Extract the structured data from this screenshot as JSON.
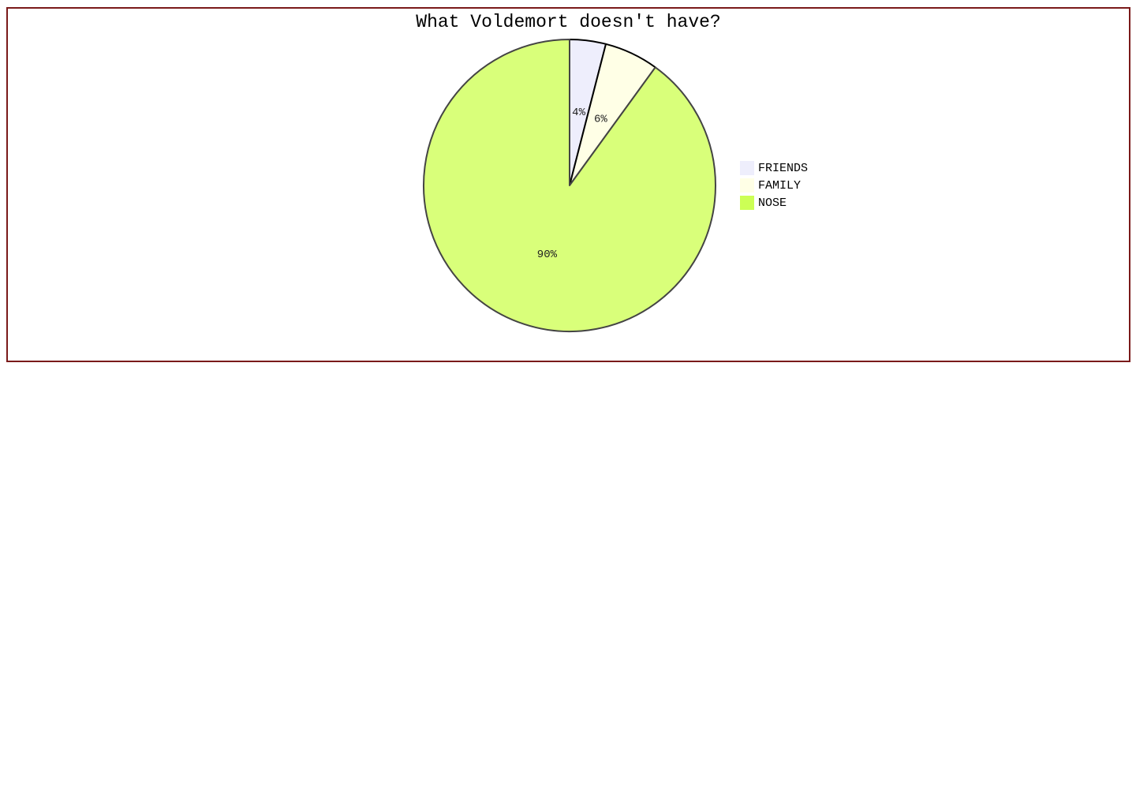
{
  "chart_data": {
    "type": "pie",
    "title": "What Voldemort doesn't have?",
    "categories": [
      "FRIENDS",
      "FAMILY",
      "NOSE"
    ],
    "values": [
      4,
      6,
      90
    ],
    "labels": [
      "4%",
      "6%",
      "90%"
    ],
    "colors": [
      "#eeeefc",
      "#ffffe6",
      "#d9ff7a"
    ],
    "legend_colors": [
      "#eeeefc",
      "#ffffe6",
      "#ccff55"
    ],
    "legend_position": "right"
  }
}
